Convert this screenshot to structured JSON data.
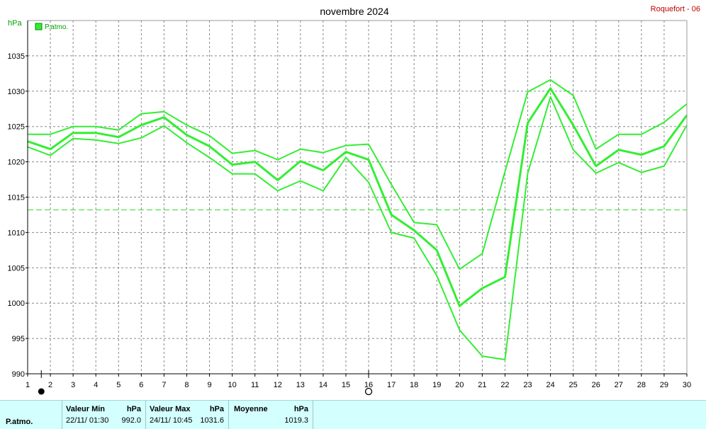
{
  "header": {
    "title": "novembre 2024",
    "station": "Roquefort - 06",
    "y_unit": "hPa",
    "legend_label": "P.atmo."
  },
  "colors": {
    "series": "#33ee33",
    "mean_line": "#33dd33",
    "footer_bg": "#d4ffff",
    "station_text": "#c00000"
  },
  "chart_data": {
    "type": "line",
    "title": "novembre 2024",
    "ylabel": "hPa",
    "xlim": [
      1,
      30
    ],
    "ylim": [
      990,
      1040
    ],
    "x_ticks": [
      1,
      2,
      3,
      4,
      5,
      6,
      7,
      8,
      9,
      10,
      11,
      12,
      13,
      14,
      15,
      16,
      17,
      18,
      19,
      20,
      21,
      22,
      23,
      24,
      25,
      26,
      27,
      28,
      29,
      30
    ],
    "y_ticks": [
      990,
      995,
      1000,
      1005,
      1010,
      1015,
      1020,
      1025,
      1030,
      1035
    ],
    "grid": true,
    "legend": "top-left",
    "mean": 1013.2,
    "markers": [
      {
        "symbol": "filled-circle",
        "x": 1.6
      },
      {
        "symbol": "open-circle",
        "x": 16
      }
    ],
    "series": [
      {
        "name": "P.atmo.",
        "role": "max",
        "x": [
          1,
          2,
          3,
          4,
          5,
          6,
          7,
          8,
          9,
          10,
          11,
          12,
          13,
          14,
          15,
          16,
          17,
          18,
          19,
          20,
          21,
          22,
          23,
          24,
          25,
          26,
          27,
          28,
          29,
          30
        ],
        "values": [
          1023.9,
          1023.9,
          1025.0,
          1025.0,
          1024.5,
          1026.8,
          1027.1,
          1025.2,
          1023.7,
          1021.2,
          1021.6,
          1020.3,
          1021.8,
          1021.3,
          1022.3,
          1022.5,
          1016.8,
          1011.4,
          1011.1,
          1004.8,
          1007.0,
          1018.6,
          1029.9,
          1031.6,
          1029.4,
          1021.8,
          1023.9,
          1023.9,
          1025.6,
          1028.2
        ]
      },
      {
        "name": "P.atmo.",
        "role": "mean",
        "x": [
          1,
          2,
          3,
          4,
          5,
          6,
          7,
          8,
          9,
          10,
          11,
          12,
          13,
          14,
          15,
          16,
          17,
          18,
          19,
          20,
          21,
          22,
          23,
          24,
          25,
          26,
          27,
          28,
          29,
          30
        ],
        "values": [
          1022.9,
          1021.8,
          1024.1,
          1024.1,
          1023.5,
          1025.2,
          1026.3,
          1023.8,
          1022.2,
          1019.6,
          1020.0,
          1017.4,
          1020.1,
          1018.8,
          1021.4,
          1020.3,
          1012.5,
          1010.3,
          1007.5,
          999.6,
          1002.1,
          1003.7,
          1025.5,
          1030.4,
          1025.2,
          1019.4,
          1021.7,
          1021.0,
          1022.2,
          1026.6
        ]
      },
      {
        "name": "P.atmo.",
        "role": "min",
        "x": [
          1,
          2,
          3,
          4,
          5,
          6,
          7,
          8,
          9,
          10,
          11,
          12,
          13,
          14,
          15,
          16,
          17,
          18,
          19,
          20,
          21,
          22,
          23,
          24,
          25,
          26,
          27,
          28,
          29,
          30
        ],
        "values": [
          1022.1,
          1020.9,
          1023.3,
          1023.1,
          1022.6,
          1023.4,
          1025.1,
          1022.7,
          1020.6,
          1018.3,
          1018.3,
          1015.9,
          1017.3,
          1015.9,
          1020.6,
          1017.1,
          1010.0,
          1009.2,
          1003.9,
          996.2,
          992.5,
          992.0,
          1018.4,
          1029.2,
          1021.7,
          1018.4,
          1019.9,
          1018.5,
          1019.4,
          1025.2
        ]
      }
    ]
  },
  "footer": {
    "series_label": "P.atmo.",
    "min_header": "Valeur Min",
    "min_unit": "hPa",
    "min_date": "22/11/  01:30",
    "min_value": "992.0",
    "max_header": "Valeur Max",
    "max_unit": "hPa",
    "max_date": "24/11/  10:45",
    "max_value": "1031.6",
    "mean_header": "Moyenne",
    "mean_unit": "hPa",
    "mean_value": "1019.3"
  }
}
